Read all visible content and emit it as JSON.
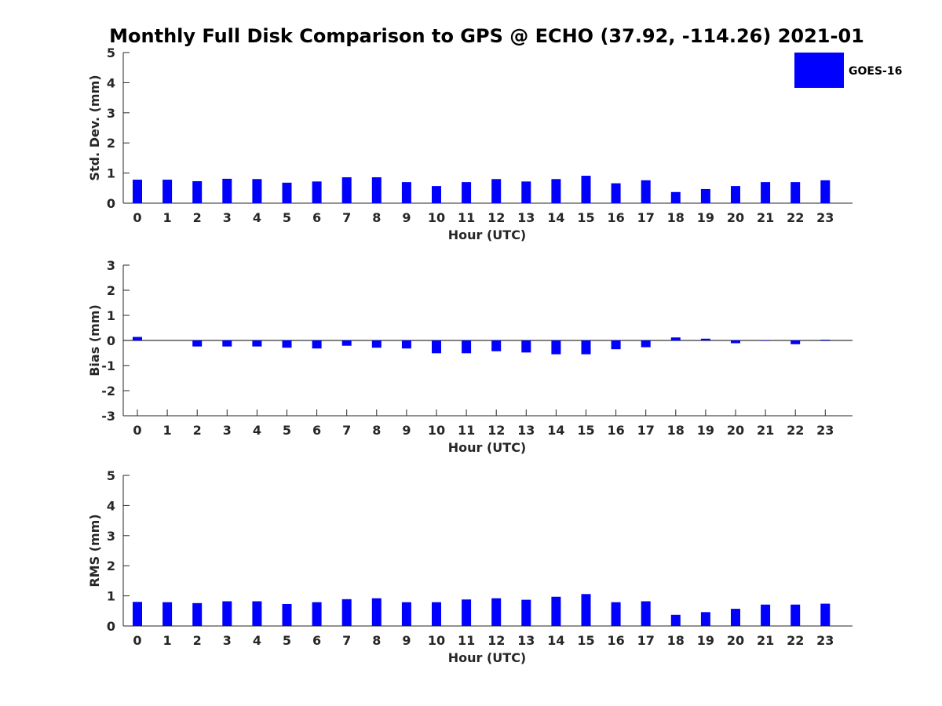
{
  "chart_data": {
    "type": "bar",
    "title": "Monthly Full Disk Comparison to GPS @ ECHO (37.92, -114.26) 2021-01",
    "legend": {
      "labels": [
        "GOES-16"
      ],
      "placement": "top-right"
    },
    "bar_color": "#0000ff",
    "categories": [
      "0",
      "1",
      "2",
      "3",
      "4",
      "5",
      "6",
      "7",
      "8",
      "9",
      "10",
      "11",
      "12",
      "13",
      "14",
      "15",
      "16",
      "17",
      "18",
      "19",
      "20",
      "21",
      "22",
      "23"
    ],
    "panels": [
      {
        "ylabel": "Std. Dev. (mm)",
        "xlabel": "Hour (UTC)",
        "ylim": [
          0,
          5
        ],
        "yticks": [
          0,
          1,
          2,
          3,
          4,
          5
        ],
        "series": [
          {
            "name": "GOES-16",
            "values": [
              0.78,
              0.78,
              0.73,
              0.81,
              0.8,
              0.68,
              0.72,
              0.86,
              0.86,
              0.7,
              0.57,
              0.7,
              0.8,
              0.72,
              0.8,
              0.91,
              0.66,
              0.76,
              0.37,
              0.47,
              0.57,
              0.7,
              0.7,
              0.76
            ]
          }
        ]
      },
      {
        "ylabel": "Bias (mm)",
        "xlabel": "Hour (UTC)",
        "ylim": [
          -3,
          3
        ],
        "yticks": [
          -3,
          -2,
          -1,
          0,
          1,
          2,
          3
        ],
        "zero_line": true,
        "series": [
          {
            "name": "GOES-16",
            "values": [
              0.14,
              0.0,
              -0.24,
              -0.24,
              -0.24,
              -0.29,
              -0.32,
              -0.21,
              -0.29,
              -0.32,
              -0.51,
              -0.51,
              -0.43,
              -0.48,
              -0.55,
              -0.55,
              -0.35,
              -0.27,
              0.12,
              0.07,
              -0.11,
              -0.02,
              -0.15,
              0.03
            ]
          }
        ]
      },
      {
        "ylabel": "RMS (mm)",
        "xlabel": "Hour (UTC)",
        "ylim": [
          0,
          5
        ],
        "yticks": [
          0,
          1,
          2,
          3,
          4,
          5
        ],
        "series": [
          {
            "name": "GOES-16",
            "values": [
              0.8,
              0.79,
              0.76,
              0.82,
              0.82,
              0.73,
              0.79,
              0.89,
              0.92,
              0.79,
              0.79,
              0.88,
              0.92,
              0.87,
              0.97,
              1.06,
              0.79,
              0.82,
              0.37,
              0.46,
              0.57,
              0.71,
              0.71,
              0.74
            ]
          }
        ]
      }
    ]
  }
}
